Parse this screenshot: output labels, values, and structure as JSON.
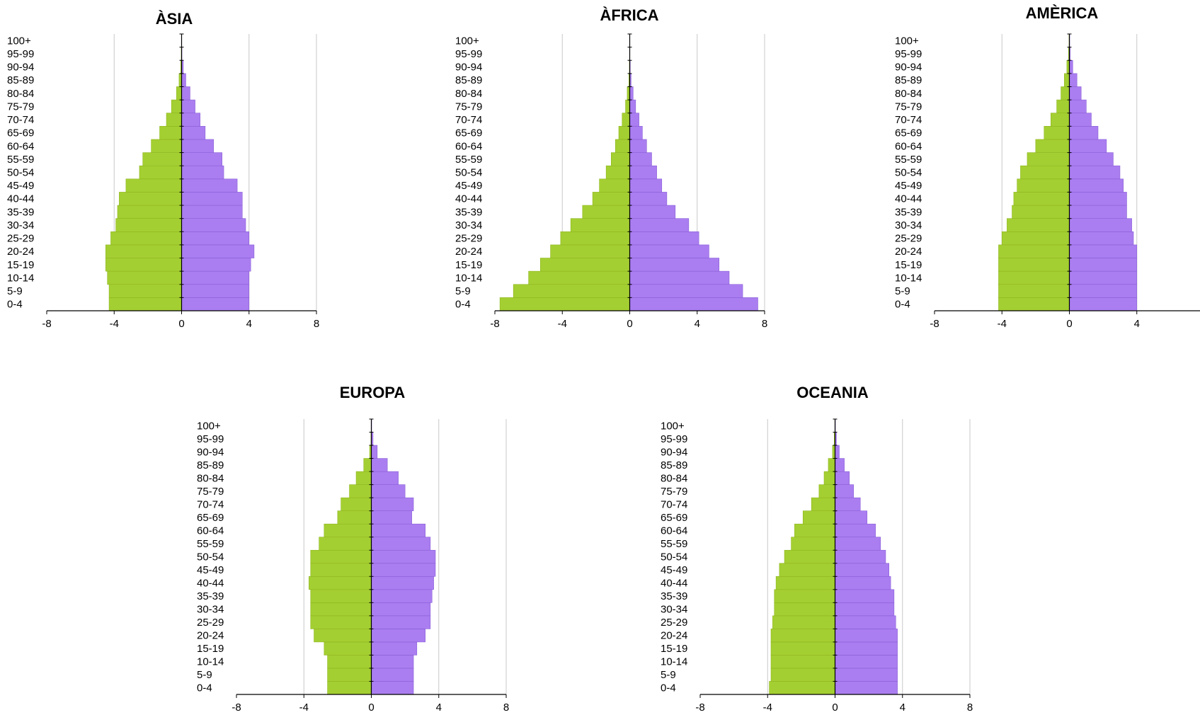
{
  "colors": {
    "male": "#a4cf32",
    "female": "#aa7ef0",
    "male_stroke": "#8db51f",
    "female_stroke": "#8a5ed8",
    "grid": "#c8c8c8",
    "axis": "#000000"
  },
  "chart_data": [
    {
      "type": "bar",
      "orientation": "horizontal-pyramid",
      "title": "ÀSIA",
      "categories": [
        "0-4",
        "5-9",
        "10-14",
        "15-19",
        "20-24",
        "25-29",
        "30-34",
        "35-39",
        "40-44",
        "45-49",
        "50-54",
        "55-59",
        "60-64",
        "65-69",
        "70-74",
        "75-79",
        "80-84",
        "85-89",
        "90-94",
        "95-99",
        "100+"
      ],
      "series": [
        {
          "values": [
            -4.3,
            -4.3,
            -4.4,
            -4.5,
            -4.5,
            -4.2,
            -3.9,
            -3.8,
            -3.7,
            -3.3,
            -2.5,
            -2.3,
            -1.8,
            -1.3,
            -0.9,
            -0.6,
            -0.3,
            -0.15,
            -0.05,
            -0.02,
            0
          ]
        },
        {
          "values": [
            4.0,
            4.0,
            4.0,
            4.1,
            4.3,
            4.0,
            3.8,
            3.6,
            3.6,
            3.3,
            2.5,
            2.4,
            1.9,
            1.4,
            1.1,
            0.8,
            0.5,
            0.25,
            0.1,
            0.02,
            0
          ]
        }
      ],
      "ticks": [
        "-8",
        "-4",
        "0",
        "4",
        "8"
      ],
      "xlim": [
        -8,
        8
      ]
    },
    {
      "type": "bar",
      "orientation": "horizontal-pyramid",
      "title": "ÀFRICA",
      "categories": [
        "0-4",
        "5-9",
        "10-14",
        "15-19",
        "20-24",
        "25-29",
        "30-34",
        "35-39",
        "40-44",
        "45-49",
        "50-54",
        "55-59",
        "60-64",
        "65-69",
        "70-74",
        "75-79",
        "80-84",
        "85-89",
        "90-94",
        "95-99",
        "100+"
      ],
      "series": [
        {
          "values": [
            -7.7,
            -6.9,
            -6.0,
            -5.3,
            -4.7,
            -4.1,
            -3.5,
            -2.8,
            -2.2,
            -1.8,
            -1.4,
            -1.1,
            -0.85,
            -0.65,
            -0.45,
            -0.25,
            -0.15,
            -0.05,
            -0.02,
            0,
            0
          ]
        },
        {
          "values": [
            7.6,
            6.7,
            5.9,
            5.3,
            4.7,
            4.1,
            3.5,
            2.7,
            2.2,
            1.9,
            1.6,
            1.3,
            1.0,
            0.75,
            0.55,
            0.35,
            0.2,
            0.08,
            0.03,
            0,
            0
          ]
        }
      ],
      "ticks": [
        "-8",
        "-4",
        "0",
        "4",
        "8"
      ],
      "xlim": [
        -8,
        8
      ]
    },
    {
      "type": "bar",
      "orientation": "horizontal-pyramid",
      "title": "AMÈRICA",
      "categories": [
        "0-4",
        "5-9",
        "10-14",
        "15-19",
        "20-24",
        "25-29",
        "30-34",
        "35-39",
        "40-44",
        "45-49",
        "50-54",
        "55-59",
        "60-64",
        "65-69",
        "70-74",
        "75-79",
        "80-84",
        "85-89",
        "90-94",
        "95-99",
        "100+"
      ],
      "series": [
        {
          "values": [
            -4.2,
            -4.2,
            -4.2,
            -4.2,
            -4.2,
            -4.0,
            -3.7,
            -3.4,
            -3.3,
            -3.1,
            -2.9,
            -2.5,
            -2.0,
            -1.5,
            -1.1,
            -0.75,
            -0.5,
            -0.3,
            -0.15,
            -0.05,
            -0.02
          ]
        },
        {
          "values": [
            4.0,
            4.0,
            4.0,
            4.0,
            4.0,
            3.8,
            3.7,
            3.4,
            3.4,
            3.2,
            3.0,
            2.6,
            2.2,
            1.7,
            1.3,
            1.0,
            0.7,
            0.45,
            0.2,
            0.05,
            0.02
          ]
        }
      ],
      "ticks": [
        "-8",
        "-4",
        "0",
        "4",
        "8"
      ],
      "xlim": [
        -8,
        8
      ]
    },
    {
      "type": "bar",
      "orientation": "horizontal-pyramid",
      "title": "EUROPA",
      "categories": [
        "0-4",
        "5-9",
        "10-14",
        "15-19",
        "20-24",
        "25-29",
        "30-34",
        "35-39",
        "40-44",
        "45-49",
        "50-54",
        "55-59",
        "60-64",
        "65-69",
        "70-74",
        "75-79",
        "80-84",
        "85-89",
        "90-94",
        "95-99",
        "100+"
      ],
      "series": [
        {
          "values": [
            -2.6,
            -2.6,
            -2.6,
            -2.8,
            -3.4,
            -3.6,
            -3.6,
            -3.6,
            -3.7,
            -3.6,
            -3.6,
            -3.1,
            -2.8,
            -2.0,
            -1.8,
            -1.3,
            -0.9,
            -0.45,
            -0.1,
            -0.02,
            0
          ]
        },
        {
          "values": [
            2.5,
            2.5,
            2.5,
            2.7,
            3.2,
            3.5,
            3.5,
            3.6,
            3.7,
            3.8,
            3.8,
            3.5,
            3.2,
            2.4,
            2.5,
            2.0,
            1.6,
            0.95,
            0.35,
            0.1,
            0.02
          ]
        }
      ],
      "ticks": [
        "-8",
        "-4",
        "0",
        "4",
        "8"
      ],
      "xlim": [
        -8,
        8
      ]
    },
    {
      "type": "bar",
      "orientation": "horizontal-pyramid",
      "title": "OCEANIA",
      "categories": [
        "0-4",
        "5-9",
        "10-14",
        "15-19",
        "20-24",
        "25-29",
        "30-34",
        "35-39",
        "40-44",
        "45-49",
        "50-54",
        "55-59",
        "60-64",
        "65-69",
        "70-74",
        "75-79",
        "80-84",
        "85-89",
        "90-94",
        "95-99",
        "100+"
      ],
      "series": [
        {
          "values": [
            -3.9,
            -3.8,
            -3.8,
            -3.8,
            -3.8,
            -3.7,
            -3.6,
            -3.6,
            -3.5,
            -3.3,
            -3.0,
            -2.6,
            -2.4,
            -1.9,
            -1.4,
            -0.95,
            -0.65,
            -0.4,
            -0.15,
            -0.05,
            -0.01
          ]
        },
        {
          "values": [
            3.7,
            3.7,
            3.7,
            3.7,
            3.7,
            3.6,
            3.5,
            3.5,
            3.3,
            3.2,
            3.0,
            2.7,
            2.4,
            1.9,
            1.5,
            1.1,
            0.85,
            0.55,
            0.25,
            0.08,
            0.02
          ]
        }
      ],
      "ticks": [
        "-8",
        "-4",
        "0",
        "4",
        "8"
      ],
      "xlim": [
        -8,
        8
      ]
    }
  ]
}
